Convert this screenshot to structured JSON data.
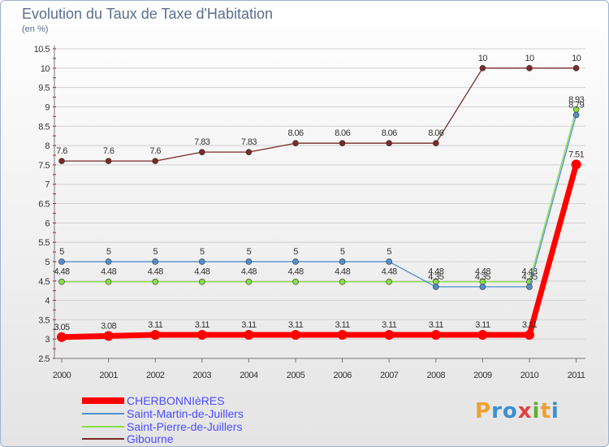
{
  "chart_data": {
    "type": "line",
    "title": "Evolution du Taux de Taxe d'Habitation",
    "ylabel": "(en %)",
    "xlabel": "",
    "ylim": [
      2.5,
      10.5
    ],
    "yticks": [
      "2.5",
      "3",
      "3.5",
      "4",
      "4.5",
      "5",
      "5.5",
      "6",
      "6.5",
      "7",
      "7.5",
      "8",
      "8.5",
      "9",
      "9.5",
      "10",
      "10.5"
    ],
    "categories": [
      "2000",
      "2001",
      "2002",
      "2003",
      "2004",
      "2005",
      "2006",
      "2007",
      "2008",
      "2009",
      "2010",
      "2011"
    ],
    "series": [
      {
        "name": "CHERBONNIèRES",
        "color": "#ff0000",
        "values": [
          3.05,
          3.08,
          3.11,
          3.11,
          3.11,
          3.11,
          3.11,
          3.11,
          3.11,
          3.11,
          3.11,
          7.51
        ],
        "labels": [
          "3.05",
          "3.08",
          "3.11",
          "3.11",
          "3.11",
          "3.11",
          "3.11",
          "3.11",
          "3.11",
          "3.11",
          "3.11",
          "7.51"
        ]
      },
      {
        "name": "Saint-Martin-de-Juillers",
        "color": "#4f8fcc",
        "values": [
          5,
          5,
          5,
          5,
          5,
          5,
          5,
          5,
          4.35,
          4.35,
          4.35,
          8.79
        ],
        "labels": [
          "5",
          "5",
          "5",
          "5",
          "5",
          "5",
          "5",
          "5",
          "4.35",
          "4.35",
          "4.35",
          "8.79"
        ]
      },
      {
        "name": "Saint-Pierre-de-Juillers",
        "color": "#88dd44",
        "values": [
          4.48,
          4.48,
          4.48,
          4.48,
          4.48,
          4.48,
          4.48,
          4.48,
          4.48,
          4.48,
          4.48,
          8.93
        ],
        "labels": [
          "4.48",
          "4.48",
          "4.48",
          "4.48",
          "4.48",
          "4.48",
          "4.48",
          "4.48",
          "4.48",
          "4.48",
          "4.48",
          "8.93"
        ]
      },
      {
        "name": "Gibourne",
        "color": "#7a2a2a",
        "values": [
          7.6,
          7.6,
          7.6,
          7.83,
          7.83,
          8.06,
          8.06,
          8.06,
          8.06,
          10,
          10,
          10
        ],
        "labels": [
          "7.6",
          "7.6",
          "7.6",
          "7.83",
          "7.83",
          "8.06",
          "8.06",
          "8.06",
          "8.06",
          "10",
          "10",
          "10"
        ]
      }
    ],
    "legend_position": "bottom-left"
  },
  "logo": {
    "text": "Proxiti",
    "colors": [
      "#f0a030",
      "#3b8fd0",
      "#3b8fd0",
      "#e04040",
      "#60b030",
      "#f0a030",
      "#3b8fd0"
    ]
  }
}
